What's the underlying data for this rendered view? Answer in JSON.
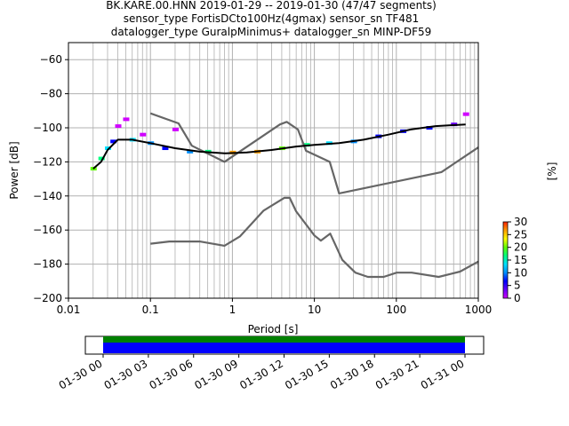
{
  "title_lines": [
    "BK.KARE.00.HNN   2019-01-29 -- 2019-01-30  (47/47 segments)",
    "sensor_type FortisDCto100Hz(4gmax) sensor_sn TF481",
    "datalogger_type GuralpMinimus+ datalogger_sn MINP-DF59"
  ],
  "chart_data": [
    {
      "type": "heatmap",
      "xlabel": "Period [s]",
      "ylabel": "Power [dB]",
      "x_scale": "log",
      "xlim": [
        0.01,
        1000
      ],
      "ylim": [
        -200,
        -50
      ],
      "x_ticks": [
        0.01,
        0.1,
        1,
        10,
        100,
        1000
      ],
      "x_tick_labels": [
        "0.01",
        "0.1",
        "1",
        "10",
        "100",
        "1000"
      ],
      "y_ticks": [
        -200,
        -180,
        -160,
        -140,
        -120,
        -100,
        -80,
        -60
      ],
      "grid": true,
      "colorbar": {
        "label": "[%]",
        "ticks": [
          0,
          5,
          10,
          15,
          20,
          25,
          30
        ],
        "range": [
          0,
          30
        ],
        "colors": [
          "#ffffff",
          "#d000ff",
          "#6a00ff",
          "#0000ff",
          "#0090ff",
          "#00e0ff",
          "#00ff80",
          "#60ff00",
          "#ffff00",
          "#ffa000",
          "#ff2000"
        ]
      },
      "series": [
        {
          "role": "mode",
          "color": "#000000",
          "x": [
            0.02,
            0.025,
            0.03,
            0.04,
            0.06,
            0.1,
            0.2,
            0.4,
            0.8,
            1.5,
            3,
            6,
            10,
            20,
            40,
            80,
            150,
            300,
            700
          ],
          "y": [
            -124,
            -120,
            -113,
            -107,
            -107,
            -109,
            -112,
            -114,
            -115,
            -114.5,
            -113,
            -111,
            -110,
            -109,
            -107,
            -104,
            -101,
            -99,
            -98
          ]
        },
        {
          "role": "noise-model-upper",
          "color": "#666666",
          "x": [
            0.1,
            0.22,
            0.32,
            0.8,
            3.8,
            4.6,
            6.3,
            7.9,
            15.4,
            20,
            354.8,
            1000
          ],
          "y": [
            -91.5,
            -97.4,
            -110.5,
            -120,
            -98,
            -96.5,
            -101,
            -113.5,
            -120,
            -138.5,
            -126,
            -111.5
          ]
        },
        {
          "role": "noise-model-lower",
          "color": "#666666",
          "x": [
            0.1,
            0.17,
            0.4,
            0.8,
            1.24,
            2.4,
            4.3,
            5,
            6,
            10,
            12,
            15.6,
            21.9,
            31.6,
            45,
            70,
            101,
            154,
            328,
            600,
            1000
          ],
          "y": [
            -168,
            -166.7,
            -166.7,
            -169.2,
            -163.7,
            -148.6,
            -141.1,
            -141.1,
            -149,
            -163.2,
            -166.2,
            -162.1,
            -177.5,
            -185,
            -187.5,
            -187.5,
            -185,
            -185,
            -187.5,
            -184.4,
            -178.5
          ]
        },
        {
          "role": "pdf-density",
          "points": [
            {
              "x": 0.02,
              "y": -124,
              "pct": 22
            },
            {
              "x": 0.025,
              "y": -118,
              "pct": 18
            },
            {
              "x": 0.03,
              "y": -112,
              "pct": 14
            },
            {
              "x": 0.035,
              "y": -108,
              "pct": 10
            },
            {
              "x": 0.04,
              "y": -99,
              "pct": 3
            },
            {
              "x": 0.05,
              "y": -95,
              "pct": 3
            },
            {
              "x": 0.06,
              "y": -107,
              "pct": 14
            },
            {
              "x": 0.08,
              "y": -104,
              "pct": 4
            },
            {
              "x": 0.1,
              "y": -109,
              "pct": 12
            },
            {
              "x": 0.15,
              "y": -112,
              "pct": 10
            },
            {
              "x": 0.2,
              "y": -101,
              "pct": 2
            },
            {
              "x": 0.3,
              "y": -114,
              "pct": 12
            },
            {
              "x": 0.5,
              "y": -114,
              "pct": 18
            },
            {
              "x": 1,
              "y": -114.5,
              "pct": 28
            },
            {
              "x": 2,
              "y": -114,
              "pct": 27
            },
            {
              "x": 4,
              "y": -112,
              "pct": 22
            },
            {
              "x": 8,
              "y": -110,
              "pct": 18
            },
            {
              "x": 15,
              "y": -109,
              "pct": 16
            },
            {
              "x": 30,
              "y": -108,
              "pct": 12
            },
            {
              "x": 60,
              "y": -105,
              "pct": 10
            },
            {
              "x": 120,
              "y": -102,
              "pct": 9
            },
            {
              "x": 250,
              "y": -100,
              "pct": 8
            },
            {
              "x": 500,
              "y": -98,
              "pct": 6
            },
            {
              "x": 700,
              "y": -92,
              "pct": 2
            }
          ]
        }
      ]
    },
    {
      "type": "timeline",
      "x_tick_labels": [
        "01-30 00",
        "01-30 03",
        "01-30 06",
        "01-30 09",
        "01-30 12",
        "01-30 15",
        "01-30 18",
        "01-30 21",
        "01-31 00"
      ],
      "tracks": [
        {
          "color": "#008000"
        },
        {
          "color": "#0000ff"
        }
      ]
    }
  ]
}
